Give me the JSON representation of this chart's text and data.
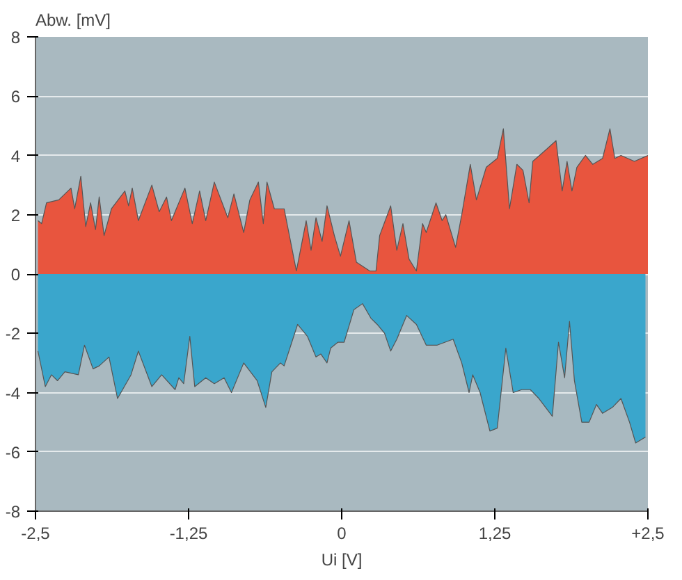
{
  "chart_data": {
    "type": "area",
    "ylabel": "Abw. [mV]",
    "xlabel": "Ui [V]",
    "xlim": [
      -2.5,
      2.5
    ],
    "xticks": [
      {
        "value": -2.5,
        "label": "-2,5"
      },
      {
        "value": -1.25,
        "label": "-1,25"
      },
      0,
      {
        "value": 1.25,
        "label": "1,25"
      },
      {
        "value": 2.5,
        "label": "+2,5"
      }
    ],
    "ylim": [
      -8,
      8
    ],
    "yticks": [
      -8,
      -6,
      -4,
      -2,
      0,
      2,
      4,
      6,
      8
    ],
    "grid": "y",
    "series": [
      {
        "color": "#e8553e",
        "x": [
          -2.48,
          -2.45,
          -2.41,
          -2.31,
          -2.21,
          -2.18,
          -2.13,
          -2.09,
          -2.05,
          -2.01,
          -1.98,
          -1.94,
          -1.88,
          -1.77,
          -1.74,
          -1.71,
          -1.66,
          -1.55,
          -1.49,
          -1.43,
          -1.39,
          -1.28,
          -1.22,
          -1.16,
          -1.11,
          -1.04,
          -0.93,
          -0.88,
          -0.8,
          -0.75,
          -0.68,
          -0.64,
          -0.61,
          -0.55,
          -0.47,
          -0.37,
          -0.29,
          -0.25,
          -0.21,
          -0.16,
          -0.12,
          -0.06,
          -0.01,
          0.06,
          0.12,
          0.23,
          0.28,
          0.31,
          0.4,
          0.45,
          0.5,
          0.55,
          0.61,
          0.66,
          0.69,
          0.77,
          0.82,
          0.85,
          0.93,
          0.98,
          1.05,
          1.1,
          1.18,
          1.27,
          1.32,
          1.37,
          1.43,
          1.48,
          1.53,
          1.56,
          1.67,
          1.75,
          1.8,
          1.84,
          1.88,
          1.92,
          1.99,
          2.05,
          2.13,
          2.19,
          2.23,
          2.28,
          2.39,
          2.5
        ],
        "values": [
          1.8,
          1.7,
          2.4,
          2.5,
          2.9,
          2.2,
          3.3,
          1.6,
          2.4,
          1.5,
          2.6,
          1.3,
          2.2,
          2.8,
          2.3,
          2.9,
          1.8,
          3.0,
          2.1,
          2.6,
          1.8,
          2.9,
          1.7,
          2.8,
          1.8,
          3.1,
          1.9,
          2.7,
          1.4,
          2.5,
          3.1,
          1.7,
          3.1,
          2.2,
          2.2,
          0.1,
          1.8,
          0.8,
          1.9,
          1.1,
          2.3,
          1.3,
          0.6,
          1.8,
          0.4,
          0.1,
          0.1,
          1.3,
          2.3,
          0.8,
          1.7,
          0.5,
          0.1,
          1.7,
          1.4,
          2.4,
          1.8,
          2.0,
          0.9,
          2.0,
          3.7,
          2.5,
          3.6,
          3.9,
          4.9,
          2.2,
          3.7,
          3.5,
          2.4,
          3.8,
          4.2,
          4.5,
          2.8,
          3.8,
          2.8,
          3.6,
          4.0,
          3.7,
          3.9,
          4.9,
          3.9,
          4.0,
          3.8,
          4.0
        ]
      },
      {
        "color": "#3aa6cc",
        "x": [
          -2.48,
          -2.42,
          -2.37,
          -2.32,
          -2.26,
          -2.15,
          -2.1,
          -2.03,
          -1.98,
          -1.9,
          -1.83,
          -1.72,
          -1.66,
          -1.55,
          -1.47,
          -1.36,
          -1.33,
          -1.29,
          -1.24,
          -1.2,
          -1.11,
          -1.04,
          -0.96,
          -0.9,
          -0.8,
          -0.69,
          -0.62,
          -0.57,
          -0.5,
          -0.47,
          -0.36,
          -0.28,
          -0.21,
          -0.17,
          -0.12,
          -0.09,
          -0.03,
          0.02,
          0.1,
          0.17,
          0.24,
          0.29,
          0.35,
          0.4,
          0.45,
          0.53,
          0.61,
          0.69,
          0.78,
          0.91,
          0.98,
          1.04,
          1.07,
          1.13,
          1.21,
          1.27,
          1.34,
          1.4,
          1.47,
          1.54,
          1.61,
          1.72,
          1.77,
          1.82,
          1.86,
          1.9,
          1.96,
          2.02,
          2.08,
          2.13,
          2.21,
          2.28,
          2.35,
          2.4,
          2.48
        ],
        "values": [
          -2.6,
          -3.8,
          -3.4,
          -3.6,
          -3.3,
          -3.4,
          -2.4,
          -3.2,
          -3.1,
          -2.8,
          -4.2,
          -3.4,
          -2.6,
          -3.8,
          -3.4,
          -3.9,
          -3.5,
          -3.7,
          -2.1,
          -3.8,
          -3.5,
          -3.7,
          -3.5,
          -4.0,
          -3.0,
          -3.6,
          -4.5,
          -3.3,
          -3.0,
          -3.1,
          -1.7,
          -2.1,
          -2.8,
          -2.7,
          -3.0,
          -2.5,
          -2.3,
          -2.3,
          -1.2,
          -1.0,
          -1.5,
          -1.7,
          -2.0,
          -2.6,
          -2.2,
          -1.4,
          -1.7,
          -2.4,
          -2.4,
          -2.2,
          -3.0,
          -4.0,
          -3.4,
          -4.0,
          -5.3,
          -5.2,
          -2.5,
          -4.0,
          -3.9,
          -3.9,
          -4.2,
          -4.8,
          -2.3,
          -3.5,
          -1.6,
          -3.6,
          -5.0,
          -5.0,
          -4.4,
          -4.7,
          -4.5,
          -4.2,
          -5.0,
          -5.7,
          -5.5
        ]
      }
    ]
  }
}
